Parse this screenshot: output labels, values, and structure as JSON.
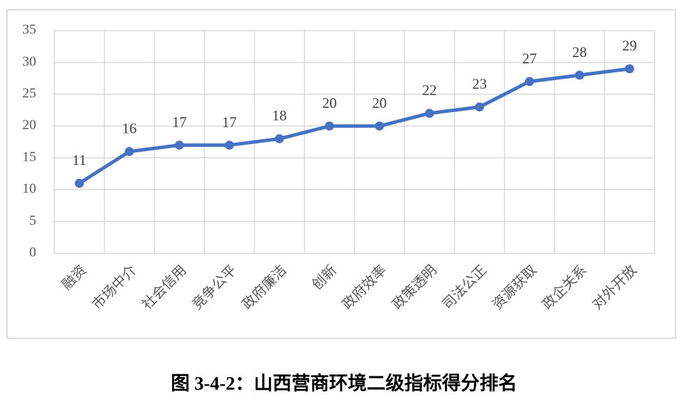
{
  "chart_data": {
    "type": "line",
    "title": "图 3-4-2：山西营商环境二级指标得分排名",
    "categories": [
      "融资",
      "市场中介",
      "社会信用",
      "竞争公平",
      "政府廉洁",
      "创新",
      "政府效率",
      "政策透明",
      "司法公正",
      "资源获取",
      "政企关系",
      "对外开放"
    ],
    "values": [
      11,
      16,
      17,
      17,
      18,
      20,
      20,
      22,
      23,
      27,
      28,
      29
    ],
    "color": "#4472c4",
    "ylim": [
      0,
      35
    ],
    "yticks": [
      0,
      5,
      10,
      15,
      20,
      25,
      30,
      35
    ],
    "grid": true
  }
}
